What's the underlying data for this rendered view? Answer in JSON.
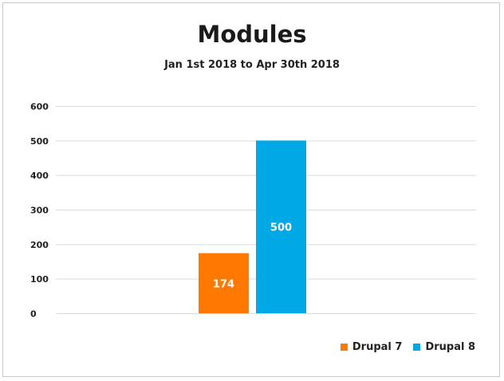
{
  "chart_data": {
    "type": "bar",
    "title": "Modules",
    "subtitle": "Jan 1st 2018 to Apr 30th 2018",
    "categories": [
      ""
    ],
    "series": [
      {
        "name": "Drupal 7",
        "values": [
          174
        ],
        "color": "#ff7900"
      },
      {
        "name": "Drupal 8",
        "values": [
          500
        ],
        "color": "#00a8e6"
      }
    ],
    "ylim": [
      0,
      600
    ],
    "yticks": [
      "0",
      "100",
      "200",
      "300",
      "400",
      "500",
      "600"
    ],
    "grid": true,
    "legend_position": "bottom-right",
    "data_labels": [
      "174",
      "500"
    ]
  }
}
